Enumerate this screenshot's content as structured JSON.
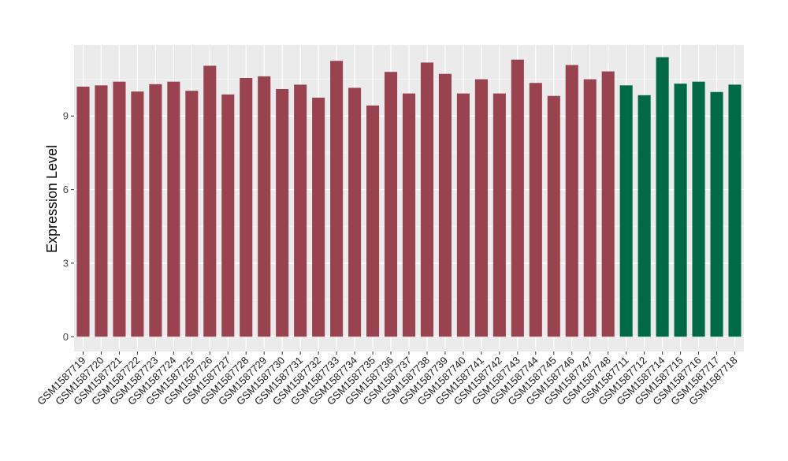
{
  "chart_data": {
    "type": "bar",
    "title": "",
    "xlabel": "",
    "ylabel": "Expression Level",
    "ylim": [
      -0.6,
      11.9
    ],
    "yticks": [
      0,
      3,
      6,
      9
    ],
    "grid": true,
    "legend": "none",
    "colors": {
      "group_a": "#9a4350",
      "group_b": "#006a46",
      "panel": "#ebebeb",
      "grid_major": "#ffffff",
      "grid_minor": "#f5f5f5",
      "tick": "#333333"
    },
    "categories": [
      "GSM1587719",
      "GSM1587720",
      "GSM1587721",
      "GSM1587722",
      "GSM1587723",
      "GSM1587724",
      "GSM1587725",
      "GSM1587726",
      "GSM1587727",
      "GSM1587728",
      "GSM1587729",
      "GSM1587730",
      "GSM1587731",
      "GSM1587732",
      "GSM1587733",
      "GSM1587734",
      "GSM1587735",
      "GSM1587736",
      "GSM1587737",
      "GSM1587738",
      "GSM1587739",
      "GSM1587740",
      "GSM1587741",
      "GSM1587742",
      "GSM1587743",
      "GSM1587744",
      "GSM1587745",
      "GSM1587746",
      "GSM1587747",
      "GSM1587748",
      "GSM1587711",
      "GSM1587712",
      "GSM1587714",
      "GSM1587715",
      "GSM1587716",
      "GSM1587717",
      "GSM1587718"
    ],
    "values": [
      10.2,
      10.25,
      10.4,
      10.0,
      10.3,
      10.4,
      10.03,
      11.05,
      9.88,
      10.55,
      10.62,
      10.1,
      10.28,
      9.75,
      11.25,
      10.15,
      9.43,
      10.8,
      9.92,
      11.18,
      10.72,
      9.92,
      10.5,
      9.92,
      11.3,
      10.35,
      9.82,
      11.08,
      10.5,
      10.82,
      10.25,
      9.85,
      11.4,
      10.32,
      10.4,
      9.98,
      10.28
    ],
    "groups": [
      "a",
      "a",
      "a",
      "a",
      "a",
      "a",
      "a",
      "a",
      "a",
      "a",
      "a",
      "a",
      "a",
      "a",
      "a",
      "a",
      "a",
      "a",
      "a",
      "a",
      "a",
      "a",
      "a",
      "a",
      "a",
      "a",
      "a",
      "a",
      "a",
      "a",
      "b",
      "b",
      "b",
      "b",
      "b",
      "b",
      "b"
    ]
  }
}
